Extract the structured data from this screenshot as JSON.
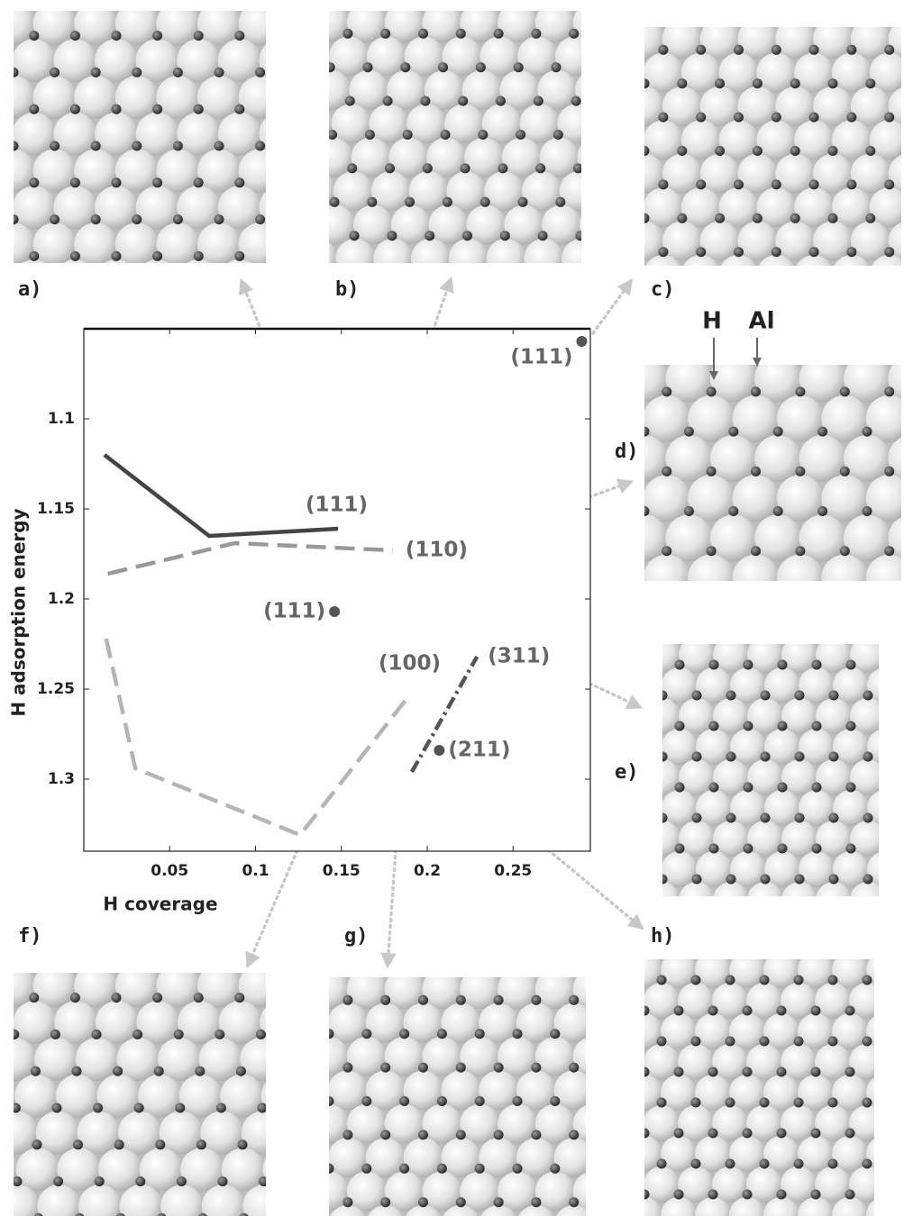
{
  "chart_data": {
    "type": "line",
    "x_label": "H coverage",
    "y_label": "H adsorption energy",
    "xlim": [
      0,
      0.295
    ],
    "ylim": [
      1.05,
      1.34
    ],
    "y_inverted": true,
    "xticks": [
      0.05,
      0.1,
      0.15,
      0.2,
      0.25
    ],
    "yticks": [
      1.1,
      1.15,
      1.2,
      1.25,
      1.3
    ],
    "series": [
      {
        "name": "(111)",
        "color": "#444444",
        "style": "solid",
        "x": [
          0.012,
          0.073,
          0.148
        ],
        "values": [
          1.12,
          1.165,
          1.161
        ]
      },
      {
        "name": "(110)",
        "color": "#999999",
        "style": "dashed",
        "x": [
          0.014,
          0.088,
          0.18
        ],
        "values": [
          1.186,
          1.169,
          1.173
        ]
      },
      {
        "name": "(100)",
        "color": "#b5b5b5",
        "style": "dashed",
        "x": [
          0.013,
          0.03,
          0.126,
          0.19
        ],
        "values": [
          1.222,
          1.294,
          1.331,
          1.253
        ]
      },
      {
        "name": "(311)",
        "color": "#555555",
        "style": "dashdot",
        "x": [
          0.191,
          0.229
        ],
        "values": [
          1.296,
          1.232
        ]
      }
    ],
    "points": [
      {
        "name": "(111)",
        "color": "#555555",
        "x": 0.146,
        "y": 1.207
      },
      {
        "name": "(111)",
        "color": "#555555",
        "x": 0.29,
        "y": 1.057
      },
      {
        "name": "(211)",
        "color": "#555555",
        "x": 0.207,
        "y": 1.284
      }
    ]
  },
  "panels": {
    "labels": [
      "a)",
      "b)",
      "c)",
      "d)",
      "e)",
      "f)",
      "g)",
      "h)"
    ]
  },
  "annotations": {
    "h": "H",
    "al": "Al"
  }
}
